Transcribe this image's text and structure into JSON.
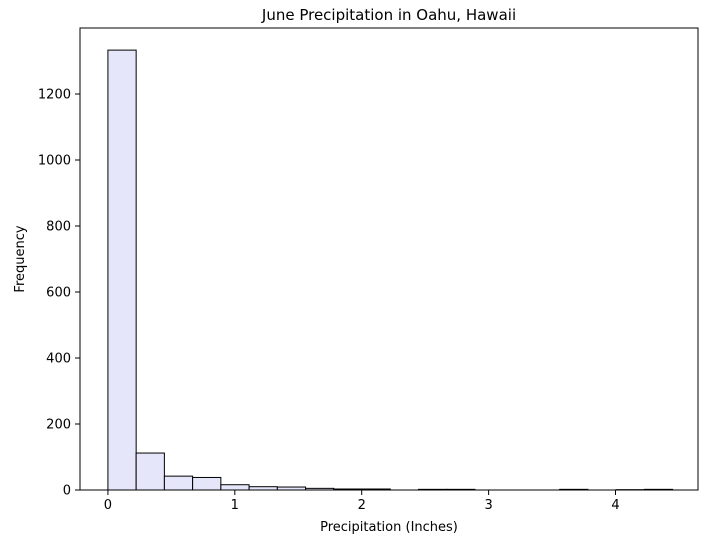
{
  "chart_data": {
    "type": "bar",
    "title": "June Precipitation in Oahu, Hawaii",
    "xlabel": "Precipitation (Inches)",
    "ylabel": "Frequency",
    "xlim": [
      -0.22,
      4.65
    ],
    "ylim": [
      0,
      1400
    ],
    "xticks": [
      0,
      1,
      2,
      3,
      4
    ],
    "yticks": [
      0,
      200,
      400,
      600,
      800,
      1000,
      1200
    ],
    "bin_edges": [
      0,
      0.2225,
      0.445,
      0.6675,
      0.89,
      1.1125,
      1.335,
      1.5575,
      1.78,
      2.0025,
      2.225,
      2.4475,
      2.67,
      2.8925,
      3.115,
      3.3375,
      3.56,
      3.7825,
      4.005,
      4.2275,
      4.45
    ],
    "values": [
      1333,
      112,
      42,
      38,
      16,
      10,
      9,
      5,
      3,
      3,
      0,
      2,
      2,
      0,
      0,
      0,
      2,
      0,
      1,
      2
    ],
    "bar_fill": "#e6e6fa",
    "bar_edge": "#000000",
    "grid": false,
    "legend": false
  }
}
